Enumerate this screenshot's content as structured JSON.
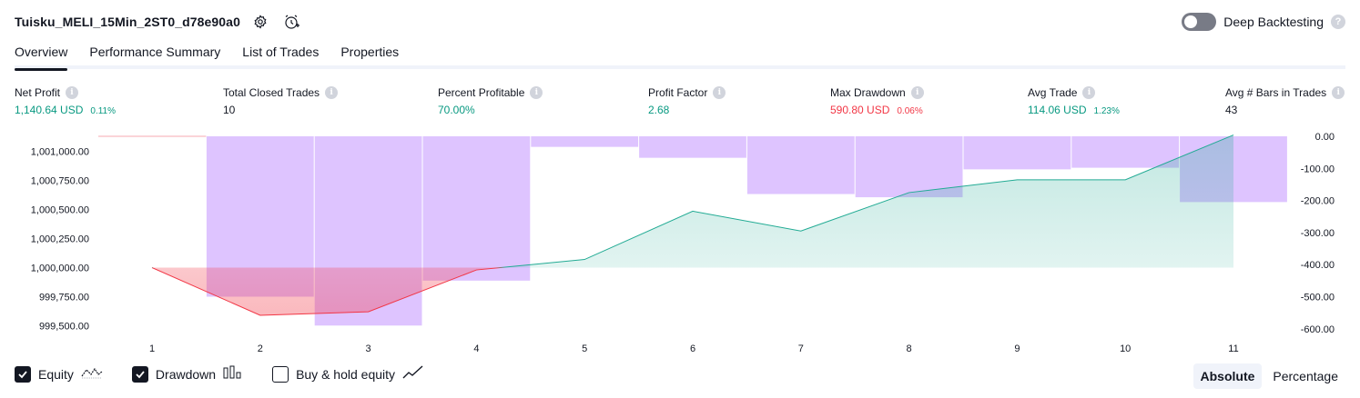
{
  "header": {
    "title": "Tuisku_MELI_15Min_2ST0_d78e90a0",
    "settings_icon": "gear-icon",
    "alert_icon": "alarm-clock-plus-icon",
    "deep_backtesting": {
      "label": "Deep Backtesting",
      "enabled": false,
      "help": "?"
    }
  },
  "tabs": [
    {
      "label": "Overview",
      "active": true
    },
    {
      "label": "Performance Summary"
    },
    {
      "label": "List of Trades"
    },
    {
      "label": "Properties"
    }
  ],
  "stats": {
    "net_profit": {
      "label": "Net Profit",
      "value": "1,140.64 USD",
      "pct": "0.11%"
    },
    "total_closed_trades": {
      "label": "Total Closed Trades",
      "value": "10"
    },
    "percent_profitable": {
      "label": "Percent Profitable",
      "value": "70.00%"
    },
    "profit_factor": {
      "label": "Profit Factor",
      "value": "2.68"
    },
    "max_drawdown": {
      "label": "Max Drawdown",
      "value": "590.80 USD",
      "pct": "0.06%"
    },
    "avg_trade": {
      "label": "Avg Trade",
      "value": "114.06 USD",
      "pct": "1.23%"
    },
    "avg_bars": {
      "label": "Avg # Bars in Trades",
      "value": "43"
    },
    "info_glyph": "i"
  },
  "chart_data": {
    "type": "line",
    "x": [
      1,
      2,
      3,
      4,
      5,
      6,
      7,
      8,
      9,
      10,
      11
    ],
    "left_axis": {
      "ticks": [
        "1,001,000.00",
        "1,000,750.00",
        "1,000,500.00",
        "1,000,250.00",
        "1,000,000.00",
        "999,750.00",
        "999,500.00"
      ],
      "tick_values": [
        1001000,
        1000750,
        1000500,
        1000250,
        1000000,
        999750,
        999500
      ]
    },
    "right_axis": {
      "ticks": [
        "0.00",
        "-100.00",
        "-200.00",
        "-300.00",
        "-400.00",
        "-500.00",
        "-600.00"
      ],
      "tick_values": [
        0,
        -100,
        -200,
        -300,
        -400,
        -500,
        -600
      ]
    },
    "equity": [
      1000000,
      999590,
      999620,
      999980,
      1000070,
      1000485,
      1000315,
      1000645,
      1000755,
      1000755,
      1001140
    ],
    "drawdown_bars": [
      {
        "from": 1.5,
        "to": 2.5,
        "value": -500
      },
      {
        "from": 2.5,
        "to": 3.5,
        "value": -590
      },
      {
        "from": 3.5,
        "to": 4.5,
        "value": -450
      },
      {
        "from": 4.5,
        "to": 5.5,
        "value": -33
      },
      {
        "from": 5.5,
        "to": 6.5,
        "value": -67
      },
      {
        "from": 6.5,
        "to": 7.5,
        "value": -180
      },
      {
        "from": 7.5,
        "to": 8.5,
        "value": -190
      },
      {
        "from": 8.5,
        "to": 9.5,
        "value": -103
      },
      {
        "from": 9.5,
        "to": 10.5,
        "value": -98
      },
      {
        "from": 10.5,
        "to": 11.5,
        "value": -205
      }
    ],
    "series": [
      {
        "name": "Equity"
      },
      {
        "name": "Drawdown"
      }
    ],
    "colors": {
      "equity_up": "#22ab94",
      "equity_down": "#f23645",
      "drawdown": "#d5b3ff"
    },
    "grid": false,
    "legend": "bottom-left"
  },
  "legend": {
    "equity": {
      "label": "Equity",
      "checked": true,
      "icon": "equity-line-icon"
    },
    "drawdown": {
      "label": "Drawdown",
      "checked": true,
      "icon": "drawdown-bars-icon"
    },
    "buy_hold": {
      "label": "Buy & hold equity",
      "checked": false,
      "icon": "buy-hold-line-icon"
    }
  },
  "mode": {
    "absolute": "Absolute",
    "percentage": "Percentage",
    "selected": "Absolute"
  }
}
